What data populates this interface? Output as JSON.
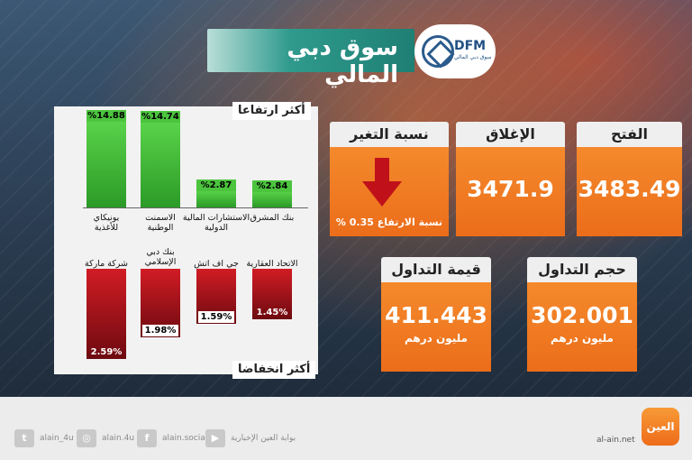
{
  "header": {
    "title": "سوق دبي المالي",
    "logo_abbr": "DFM",
    "logo_sub": "سوق دبي المالي"
  },
  "gainers": {
    "title": "أكثر ارتفاعا",
    "items": [
      {
        "name_line1": "يونيكاي",
        "name_line2": "للأغذية",
        "pct": "%14.88",
        "value": 14.88
      },
      {
        "name_line1": "الاسمنت",
        "name_line2": "الوطنية",
        "pct": "%14.74",
        "value": 14.74
      },
      {
        "name_line1": "الاستشارات المالية",
        "name_line2": "الدولية",
        "pct": "%2.87",
        "value": 2.87
      },
      {
        "name_line1": "بنك المشرق",
        "name_line2": "",
        "pct": "%2.84",
        "value": 2.84
      }
    ]
  },
  "losers": {
    "title": "أكثر انخفاضا",
    "items": [
      {
        "name_line1": "شركة ماركة",
        "name_line2": "",
        "pct": "2.59%",
        "value": 2.59
      },
      {
        "name_line1": "بنك دبي",
        "name_line2": "الإسلامي",
        "pct": "1.98%",
        "value": 1.98
      },
      {
        "name_line1": "جي اف اتش",
        "name_line2": "",
        "pct": "1.59%",
        "value": 1.59
      },
      {
        "name_line1": "الاتحاد العقارية",
        "name_line2": "",
        "pct": "1.45%",
        "value": 1.45
      }
    ]
  },
  "stats": {
    "open": {
      "label": "الفتح",
      "value": "3483.49"
    },
    "close": {
      "label": "الإغلاق",
      "value": "3471.9"
    },
    "change": {
      "label": "نسبة التغير",
      "text": "% 0.35 نسبة الارتفاع"
    },
    "volume": {
      "label": "حجم التداول",
      "value": "302.001",
      "unit": "مليون درهم"
    },
    "turnover": {
      "label": "قيمة التداول",
      "value": "411.443",
      "unit": "مليون درهم"
    }
  },
  "footer": {
    "twitter": "alain_4u",
    "instagram": "alain.4u",
    "facebook": "alain.social",
    "youtube": "بوابة العين الإخبارية",
    "brand": "العين",
    "site": "al-ain.net"
  },
  "colors": {
    "orange": "#f07a22",
    "green": "#4cc43e",
    "red": "#c8171f",
    "teal": "#2f9a8d"
  }
}
